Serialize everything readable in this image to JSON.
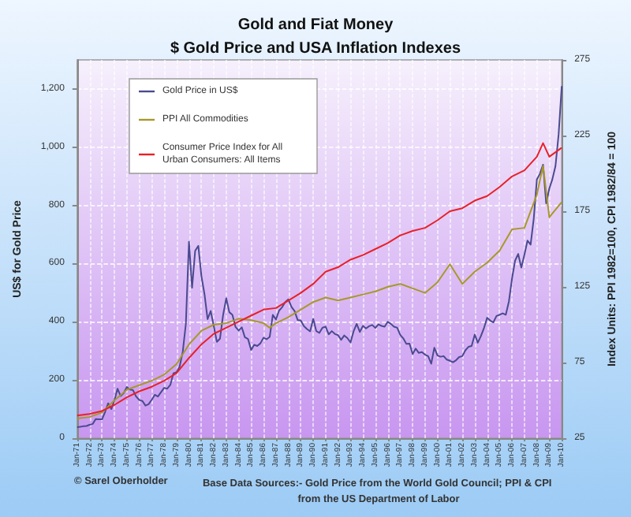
{
  "chart_data": {
    "type": "line",
    "title": "Gold and Fiat Money",
    "subtitle": "$ Gold Price and USA Inflation Indexes",
    "ylabel": "US$ for Gold Price",
    "y2label": "Index Units: PPI 1982=100, CPI 1982/84 = 100",
    "annotations": [
      "© Sarel Oberholder",
      "Base Data Sources:- Gold Price from the World Gold Council; PPI & CPI from the US Department of Labor"
    ],
    "xlim": [
      "1971-01",
      "2010-01"
    ],
    "xticks": [
      {
        "value": "1971-01",
        "label": "Jan-71"
      },
      {
        "value": "1972-01",
        "label": "Jan-72"
      },
      {
        "value": "1973-01",
        "label": "Jan-73"
      },
      {
        "value": "1974-01",
        "label": "Jan-74"
      },
      {
        "value": "1975-01",
        "label": "Jan-75"
      },
      {
        "value": "1976-01",
        "label": "Jan-76"
      },
      {
        "value": "1977-01",
        "label": "Jan-77"
      },
      {
        "value": "1978-01",
        "label": "Jan-78"
      },
      {
        "value": "1979-01",
        "label": "Jan-79"
      },
      {
        "value": "1980-01",
        "label": "Jan-80"
      },
      {
        "value": "1981-01",
        "label": "Jan-81"
      },
      {
        "value": "1982-01",
        "label": "Jan-82"
      },
      {
        "value": "1983-01",
        "label": "Jan-83"
      },
      {
        "value": "1984-01",
        "label": "Jan-84"
      },
      {
        "value": "1985-01",
        "label": "Jan-85"
      },
      {
        "value": "1986-01",
        "label": "Jan-86"
      },
      {
        "value": "1987-01",
        "label": "Jan-87"
      },
      {
        "value": "1988-01",
        "label": "Jan-88"
      },
      {
        "value": "1989-01",
        "label": "Jan-89"
      },
      {
        "value": "1990-01",
        "label": "Jan-90"
      },
      {
        "value": "1991-01",
        "label": "Jan-91"
      },
      {
        "value": "1992-01",
        "label": "Jan-92"
      },
      {
        "value": "1993-01",
        "label": "Jan-93"
      },
      {
        "value": "1994-01",
        "label": "Jan-94"
      },
      {
        "value": "1995-01",
        "label": "Jan-95"
      },
      {
        "value": "1996-01",
        "label": "Jan-96"
      },
      {
        "value": "1997-01",
        "label": "Jan-97"
      },
      {
        "value": "1998-01",
        "label": "Jan-98"
      },
      {
        "value": "1999-01",
        "label": "Jan-99"
      },
      {
        "value": "2000-01",
        "label": "Jan-00"
      },
      {
        "value": "2001-01",
        "label": "Jan-01"
      },
      {
        "value": "2002-01",
        "label": "Jan-02"
      },
      {
        "value": "2003-01",
        "label": "Jan-03"
      },
      {
        "value": "2004-01",
        "label": "Jan-04"
      },
      {
        "value": "2005-01",
        "label": "Jan-05"
      },
      {
        "value": "2006-01",
        "label": "Jan-06"
      },
      {
        "value": "2007-01",
        "label": "Jan-07"
      },
      {
        "value": "2008-01",
        "label": "Jan-08"
      },
      {
        "value": "2009-01",
        "label": "Jan-09"
      },
      {
        "value": "2010-01",
        "label": "Jan-10"
      }
    ],
    "ylim": [
      0,
      1300
    ],
    "yticks": [
      0,
      200,
      400,
      600,
      800,
      {
        "value": 1000,
        "label": "1,000"
      },
      {
        "value": 1200,
        "label": "1,200"
      }
    ],
    "y2lim": [
      25,
      275
    ],
    "y2ticks": [
      25,
      75,
      125,
      175,
      225,
      275
    ],
    "grid": true,
    "legend": "top left",
    "line_style": "solid",
    "series": [
      {
        "name": "Gold Price in US$",
        "color": "#4a4a90",
        "x": [
          "1971-01",
          "1971-04",
          "1971-07",
          "1971-10",
          "1972-01",
          "1972-04",
          "1972-07",
          "1972-10",
          "1973-01",
          "1973-04",
          "1973-07",
          "1973-10",
          "1974-01",
          "1974-04",
          "1974-07",
          "1974-10",
          "1975-01",
          "1975-04",
          "1975-07",
          "1975-10",
          "1976-01",
          "1976-04",
          "1976-07",
          "1976-10",
          "1977-01",
          "1977-04",
          "1977-07",
          "1977-10",
          "1978-01",
          "1978-04",
          "1978-07",
          "1978-10",
          "1979-01",
          "1979-04",
          "1979-07",
          "1979-10",
          "1980-01",
          "1980-04",
          "1980-07",
          "1980-10",
          "1981-01",
          "1981-04",
          "1981-07",
          "1981-10",
          "1982-01",
          "1982-04",
          "1982-07",
          "1982-10",
          "1983-01",
          "1983-04",
          "1983-07",
          "1983-10",
          "1984-01",
          "1984-04",
          "1984-07",
          "1984-10",
          "1985-01",
          "1985-04",
          "1985-07",
          "1985-10",
          "1986-01",
          "1986-04",
          "1986-07",
          "1986-10",
          "1987-01",
          "1987-04",
          "1987-07",
          "1987-10",
          "1988-01",
          "1988-04",
          "1988-07",
          "1988-10",
          "1989-01",
          "1989-04",
          "1989-07",
          "1989-10",
          "1990-01",
          "1990-04",
          "1990-07",
          "1990-10",
          "1991-01",
          "1991-04",
          "1991-07",
          "1991-10",
          "1992-01",
          "1992-04",
          "1992-07",
          "1992-10",
          "1993-01",
          "1993-04",
          "1993-07",
          "1993-10",
          "1994-01",
          "1994-04",
          "1994-07",
          "1994-10",
          "1995-01",
          "1995-04",
          "1995-07",
          "1995-10",
          "1996-01",
          "1996-04",
          "1996-07",
          "1996-10",
          "1997-01",
          "1997-04",
          "1997-07",
          "1997-10",
          "1998-01",
          "1998-04",
          "1998-07",
          "1998-10",
          "1999-01",
          "1999-04",
          "1999-07",
          "1999-10",
          "2000-01",
          "2000-04",
          "2000-07",
          "2000-10",
          "2001-01",
          "2001-04",
          "2001-07",
          "2001-10",
          "2002-01",
          "2002-04",
          "2002-07",
          "2002-10",
          "2003-01",
          "2003-04",
          "2003-07",
          "2003-10",
          "2004-01",
          "2004-04",
          "2004-07",
          "2004-10",
          "2005-01",
          "2005-04",
          "2005-07",
          "2005-10",
          "2006-01",
          "2006-04",
          "2006-07",
          "2006-10",
          "2007-01",
          "2007-04",
          "2007-07",
          "2007-10",
          "2008-01",
          "2008-04",
          "2008-07",
          "2008-10",
          "2009-01",
          "2009-04",
          "2009-07",
          "2009-10",
          "2010-01"
        ],
        "values": [
          38,
          39,
          41,
          42,
          46,
          49,
          66,
          65,
          65,
          90,
          120,
          100,
          130,
          170,
          145,
          155,
          176,
          167,
          165,
          143,
          131,
          128,
          112,
          117,
          132,
          149,
          143,
          158,
          173,
          170,
          183,
          223,
          227,
          246,
          296,
          392,
          675,
          517,
          644,
          661,
          557,
          495,
          409,
          437,
          384,
          331,
          342,
          424,
          481,
          433,
          424,
          382,
          370,
          381,
          347,
          341,
          303,
          321,
          317,
          326,
          345,
          340,
          348,
          424,
          408,
          438,
          450,
          468,
          477,
          451,
          437,
          406,
          404,
          385,
          375,
          367,
          410,
          368,
          362,
          380,
          383,
          357,
          368,
          358,
          354,
          338,
          353,
          344,
          329,
          367,
          393,
          365,
          386,
          377,
          385,
          389,
          379,
          391,
          386,
          383,
          400,
          393,
          383,
          380,
          355,
          343,
          324,
          325,
          289,
          308,
          293,
          296,
          287,
          282,
          256,
          311,
          284,
          280,
          282,
          270,
          266,
          261,
          268,
          279,
          282,
          302,
          314,
          317,
          356,
          328,
          351,
          379,
          414,
          404,
          398,
          420,
          424,
          429,
          424,
          470,
          549,
          610,
          633,
          586,
          631,
          679,
          665,
          754,
          889,
          909,
          940,
          807,
          858,
          890,
          935,
          1043,
          1210
        ]
      },
      {
        "name": "PPI All Commodities",
        "color": "#a8982a",
        "axis": "y2",
        "x": [
          "1971-01",
          "1972-01",
          "1973-01",
          "1974-01",
          "1975-01",
          "1976-01",
          "1977-01",
          "1978-01",
          "1979-01",
          "1980-01",
          "1981-01",
          "1982-01",
          "1983-01",
          "1984-01",
          "1985-01",
          "1986-01",
          "1986-07",
          "1987-01",
          "1988-01",
          "1989-01",
          "1990-01",
          "1991-01",
          "1992-01",
          "1993-01",
          "1994-01",
          "1995-01",
          "1996-01",
          "1997-01",
          "1998-01",
          "1999-01",
          "2000-01",
          "2001-01",
          "2002-01",
          "2003-01",
          "2004-01",
          "2005-01",
          "2006-01",
          "2007-01",
          "2008-01",
          "2008-07",
          "2009-01",
          "2010-01"
        ],
        "values": [
          38,
          39,
          42,
          50,
          57,
          60,
          63,
          67,
          74,
          87,
          96,
          100,
          101,
          104,
          103,
          101,
          98,
          101,
          105,
          110,
          115,
          118,
          116,
          118,
          120,
          122,
          125,
          127,
          124,
          121,
          128,
          140,
          127,
          135,
          141,
          149,
          163,
          164,
          186,
          205,
          171,
          181
        ]
      },
      {
        "name": "Consumer Price Index for All Urban Consumers: All Items",
        "color": "#e82028",
        "axis": "y2",
        "x": [
          "1971-01",
          "1972-01",
          "1973-01",
          "1974-01",
          "1975-01",
          "1976-01",
          "1977-01",
          "1978-01",
          "1979-01",
          "1980-01",
          "1981-01",
          "1982-01",
          "1983-01",
          "1984-01",
          "1985-01",
          "1986-01",
          "1987-01",
          "1988-01",
          "1989-01",
          "1990-01",
          "1991-01",
          "1992-01",
          "1993-01",
          "1994-01",
          "1995-01",
          "1996-01",
          "1997-01",
          "1998-01",
          "1999-01",
          "2000-01",
          "2001-01",
          "2002-01",
          "2003-01",
          "2004-01",
          "2005-01",
          "2006-01",
          "2007-01",
          "2008-01",
          "2008-07",
          "2009-01",
          "2010-01"
        ],
        "values": [
          40,
          41,
          43,
          47,
          52,
          56,
          59,
          63,
          68,
          78,
          87,
          94,
          98,
          102,
          106,
          110,
          111,
          116,
          121,
          127,
          135,
          138,
          143,
          146,
          150,
          154,
          159,
          162,
          164,
          169,
          175,
          177,
          182,
          185,
          191,
          198,
          202,
          211,
          220,
          211,
          217
        ]
      }
    ]
  }
}
